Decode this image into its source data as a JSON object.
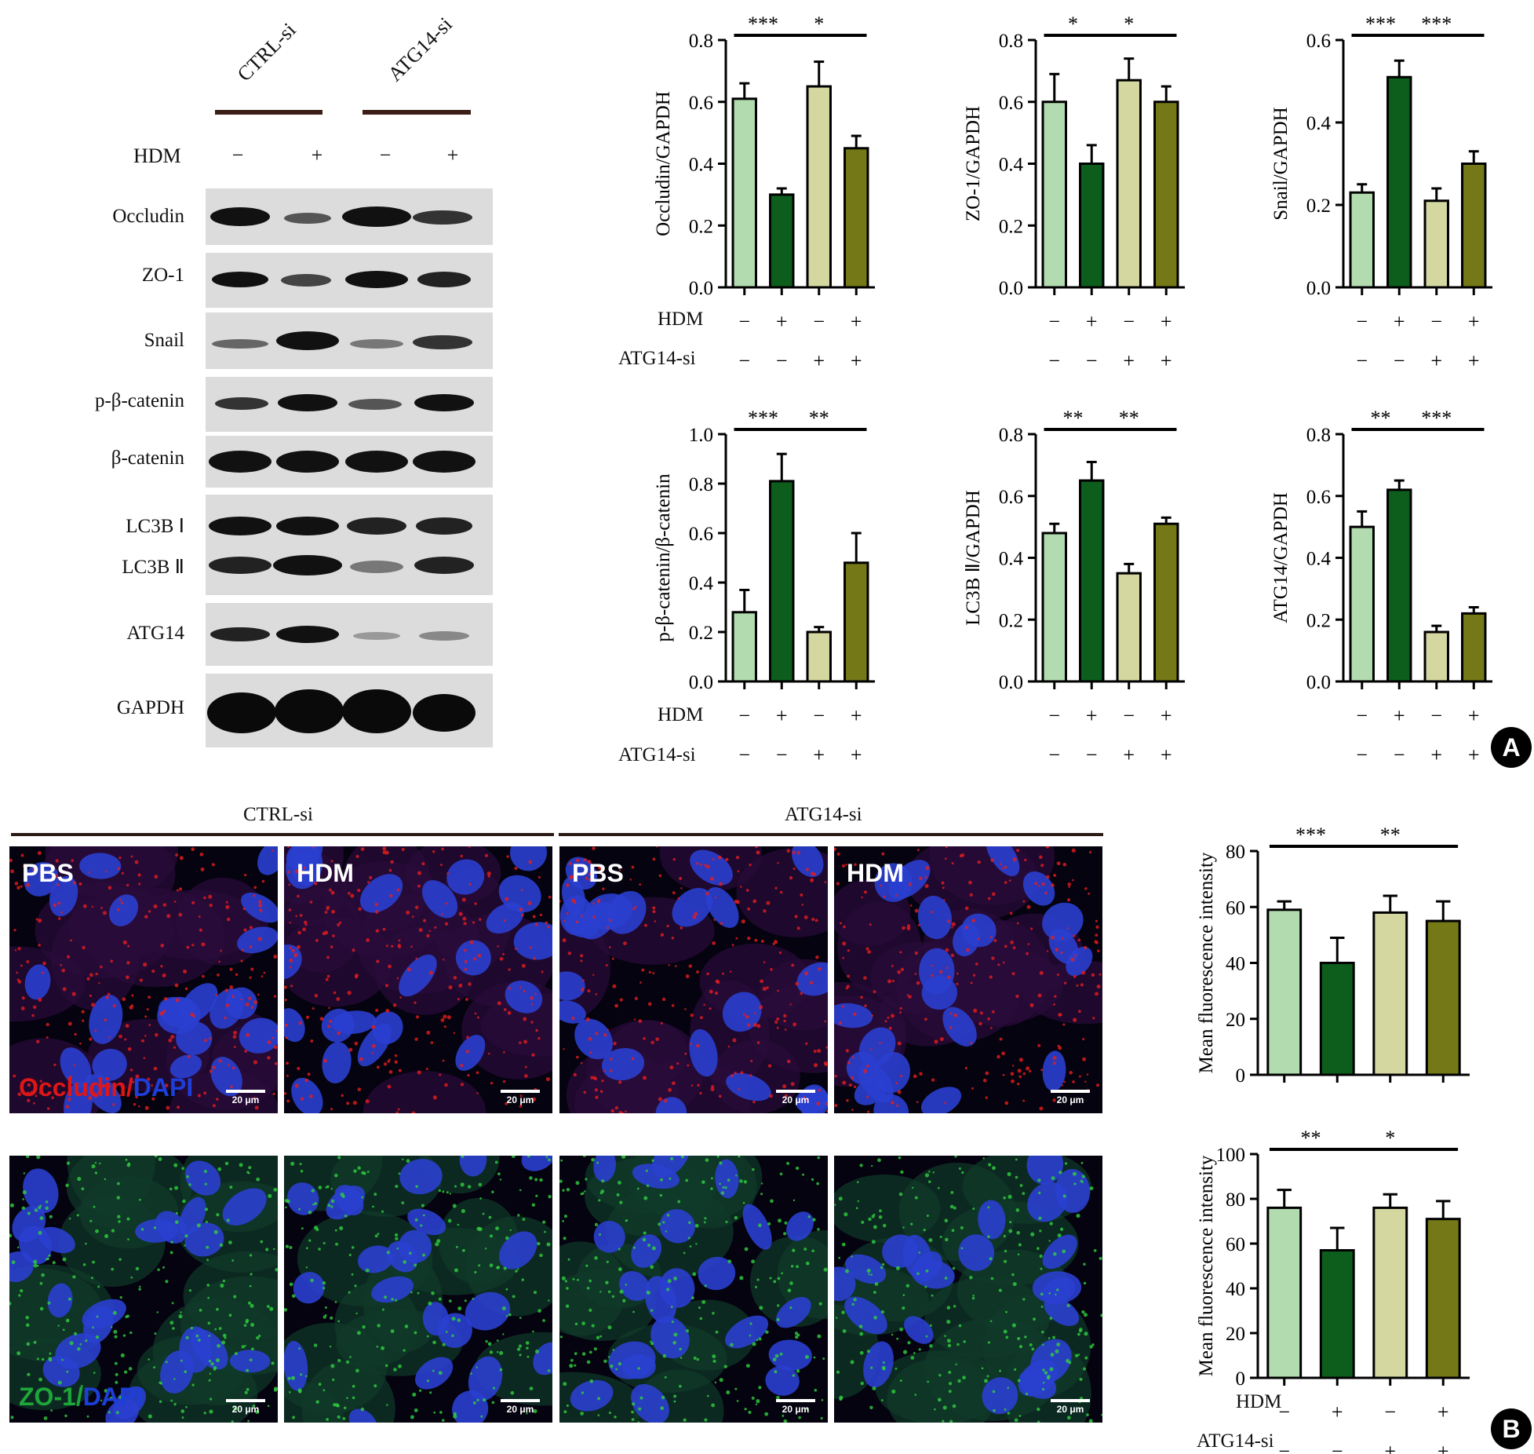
{
  "panel_a": {
    "badge": "A",
    "blot": {
      "groups": [
        "CTRL-si",
        "ATG14-si"
      ],
      "hdm_label": "HDM",
      "hdm_signs": [
        "−",
        "+",
        "−",
        "+"
      ],
      "rows": [
        "Occludin",
        "ZO-1",
        "Snail",
        "p-β-catenin",
        "β-catenin",
        "LC3B Ⅰ",
        "LC3B Ⅱ",
        "ATG14",
        "GAPDH"
      ]
    },
    "row_labels": {
      "hdm": "HDM",
      "atg14": "ATG14-si"
    },
    "hdm_signs": [
      "−",
      "+",
      "−",
      "+"
    ],
    "atg14_signs": [
      "−",
      "−",
      "+",
      "+"
    ]
  },
  "panel_b": {
    "badge": "B",
    "groups": [
      "CTRL-si",
      "ATG14-si"
    ],
    "tiles_top": [
      "PBS",
      "HDM",
      "PBS",
      "HDM"
    ],
    "stain_top": {
      "a": "Occludin",
      "sep": "/",
      "b": "DAPI"
    },
    "stain_bottom": {
      "a": "ZO-1",
      "sep": "/",
      "b": "DAPI"
    },
    "scale": "20 μm",
    "row_labels": {
      "hdm": "HDM",
      "atg14": "ATG14-si"
    },
    "hdm_signs": [
      "−",
      "+",
      "−",
      "+"
    ],
    "atg14_signs": [
      "−",
      "−",
      "+",
      "+"
    ]
  },
  "colors": {
    "bar_fills": [
      "#b2dcb0",
      "#0d5e1c",
      "#d5d7a0",
      "#757817"
    ],
    "red_stain": "#e01616",
    "green_stain": "#1ea63a",
    "blue_stain": "#1d3ed8"
  },
  "chart_data": [
    {
      "id": "occludin",
      "type": "bar",
      "ylabel": "Occludin/GAPDH",
      "ylim": [
        0,
        0.8
      ],
      "yticks": [
        "0.0",
        "0.2",
        "0.4",
        "0.6",
        "0.8"
      ],
      "values": [
        0.61,
        0.3,
        0.65,
        0.45
      ],
      "errors": [
        0.05,
        0.02,
        0.08,
        0.04
      ],
      "sig": [
        {
          "from": 0,
          "to": 1,
          "label": "***"
        },
        {
          "from": 1,
          "to": 3,
          "label": "*"
        }
      ]
    },
    {
      "id": "zo1",
      "type": "bar",
      "ylabel": "ZO-1/GAPDH",
      "ylim": [
        0,
        0.8
      ],
      "yticks": [
        "0.0",
        "0.2",
        "0.4",
        "0.6",
        "0.8"
      ],
      "values": [
        0.6,
        0.4,
        0.67,
        0.6
      ],
      "errors": [
        0.09,
        0.06,
        0.07,
        0.05
      ],
      "sig": [
        {
          "from": 0,
          "to": 1,
          "label": "*"
        },
        {
          "from": 1,
          "to": 3,
          "label": "*"
        }
      ]
    },
    {
      "id": "snail",
      "type": "bar",
      "ylabel": "Snail/GAPDH",
      "ylim": [
        0,
        0.6
      ],
      "yticks": [
        "0.0",
        "0.2",
        "0.4",
        "0.6"
      ],
      "values": [
        0.23,
        0.51,
        0.21,
        0.3
      ],
      "errors": [
        0.02,
        0.04,
        0.03,
        0.03
      ],
      "sig": [
        {
          "from": 0,
          "to": 1,
          "label": "***"
        },
        {
          "from": 1,
          "to": 3,
          "label": "***"
        }
      ]
    },
    {
      "id": "pbcat",
      "type": "bar",
      "ylabel": "p-β-catenin/β-catenin",
      "ylim": [
        0,
        1.0
      ],
      "yticks": [
        "0.0",
        "0.2",
        "0.4",
        "0.6",
        "0.8",
        "1.0"
      ],
      "values": [
        0.28,
        0.81,
        0.2,
        0.48
      ],
      "errors": [
        0.09,
        0.11,
        0.02,
        0.12
      ],
      "sig": [
        {
          "from": 0,
          "to": 1,
          "label": "***"
        },
        {
          "from": 1,
          "to": 3,
          "label": "**"
        }
      ]
    },
    {
      "id": "lc3b",
      "type": "bar",
      "ylabel": "LC3B Ⅱ/GAPDH",
      "ylim": [
        0,
        0.8
      ],
      "yticks": [
        "0.0",
        "0.2",
        "0.4",
        "0.6",
        "0.8"
      ],
      "values": [
        0.48,
        0.65,
        0.35,
        0.51
      ],
      "errors": [
        0.03,
        0.06,
        0.03,
        0.02
      ],
      "sig": [
        {
          "from": 0,
          "to": 1,
          "label": "**"
        },
        {
          "from": 1,
          "to": 3,
          "label": "**"
        }
      ]
    },
    {
      "id": "atg14",
      "type": "bar",
      "ylabel": "ATG14/GAPDH",
      "ylim": [
        0,
        0.8
      ],
      "yticks": [
        "0.0",
        "0.2",
        "0.4",
        "0.6",
        "0.8"
      ],
      "values": [
        0.5,
        0.62,
        0.16,
        0.22
      ],
      "errors": [
        0.05,
        0.03,
        0.02,
        0.02
      ],
      "sig": [
        {
          "from": 0,
          "to": 1,
          "label": "**"
        },
        {
          "from": 1,
          "to": 3,
          "label": "***"
        }
      ]
    },
    {
      "id": "mfi_occludin",
      "type": "bar",
      "ylabel": "Mean fluorescence intensity",
      "ylim": [
        0,
        80
      ],
      "yticks": [
        "0",
        "20",
        "40",
        "60",
        "80"
      ],
      "values": [
        59,
        40,
        58,
        55
      ],
      "errors": [
        3,
        9,
        6,
        7
      ],
      "sig": [
        {
          "from": 0,
          "to": 1,
          "label": "***"
        },
        {
          "from": 1,
          "to": 3,
          "label": "**"
        }
      ]
    },
    {
      "id": "mfi_zo1",
      "type": "bar",
      "ylabel": "Mean fluorescence intensity",
      "ylim": [
        0,
        100
      ],
      "yticks": [
        "0",
        "20",
        "40",
        "60",
        "80",
        "100"
      ],
      "values": [
        76,
        57,
        76,
        71
      ],
      "errors": [
        8,
        10,
        6,
        8
      ],
      "sig": [
        {
          "from": 0,
          "to": 1,
          "label": "**"
        },
        {
          "from": 1,
          "to": 3,
          "label": "*"
        }
      ]
    }
  ]
}
